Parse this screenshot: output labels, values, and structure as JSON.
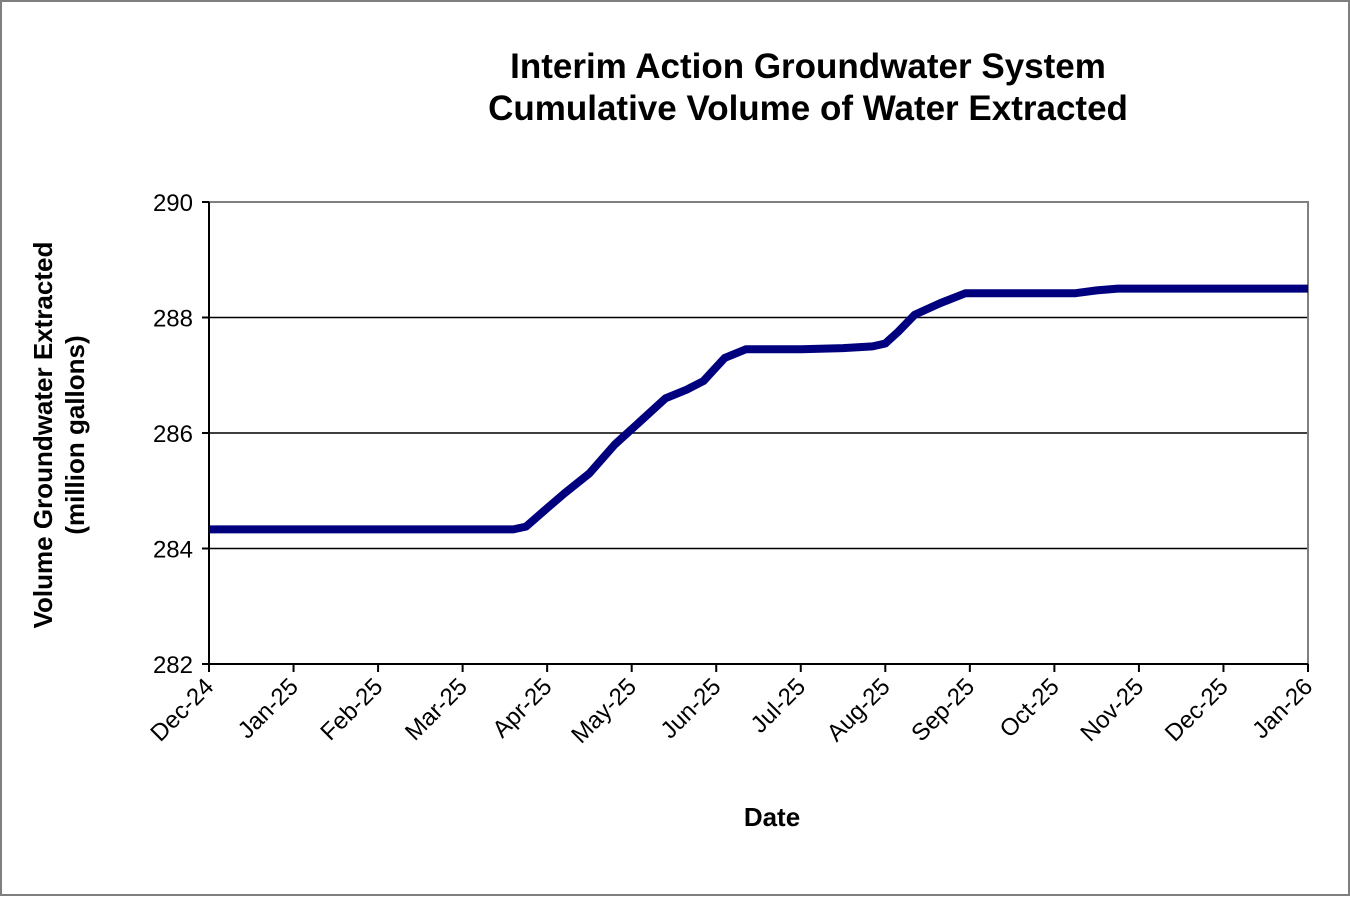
{
  "chart_data": {
    "type": "line",
    "title_lines": [
      "Interim  Action Groundwater System",
      "Cumulative Volume  of Water Extracted"
    ],
    "xlabel": "Date",
    "ylabel_lines": [
      "Volume Groundwater Extracted",
      "(million gallons)"
    ],
    "ylim": [
      282,
      290
    ],
    "yticks": [
      "282",
      "284",
      "286",
      "288",
      "290"
    ],
    "ytick_values": [
      282,
      284,
      286,
      288,
      290
    ],
    "xlim": [
      0,
      13
    ],
    "categories": [
      "Dec-24",
      "Jan-25",
      "Feb-25",
      "Mar-25",
      "Apr-25",
      "May-25",
      "Jun-25",
      "Jul-25",
      "Aug-25",
      "Sep-25",
      "Oct-25",
      "Nov-25",
      "Dec-25",
      "Jan-26"
    ],
    "grid": "horizontal",
    "series": [
      {
        "name": "Cumulative Volume",
        "color": "#00007f",
        "x": [
          0,
          1,
          2,
          3,
          3.6,
          3.75,
          4,
          4.2,
          4.5,
          4.8,
          5.1,
          5.4,
          5.65,
          5.85,
          6.1,
          6.35,
          6.55,
          6.75,
          7,
          7.5,
          7.85,
          8,
          8.15,
          8.35,
          8.65,
          8.95,
          9.3,
          9.75,
          10,
          10.25,
          10.5,
          10.75,
          11,
          12,
          13
        ],
        "values": [
          284.33,
          284.33,
          284.33,
          284.33,
          284.33,
          284.38,
          284.7,
          284.95,
          285.3,
          285.8,
          286.2,
          286.6,
          286.75,
          286.9,
          287.3,
          287.45,
          287.45,
          287.45,
          287.45,
          287.47,
          287.5,
          287.55,
          287.75,
          288.05,
          288.25,
          288.42,
          288.42,
          288.42,
          288.42,
          288.42,
          288.47,
          288.5,
          288.5,
          288.5,
          288.5
        ]
      }
    ]
  }
}
